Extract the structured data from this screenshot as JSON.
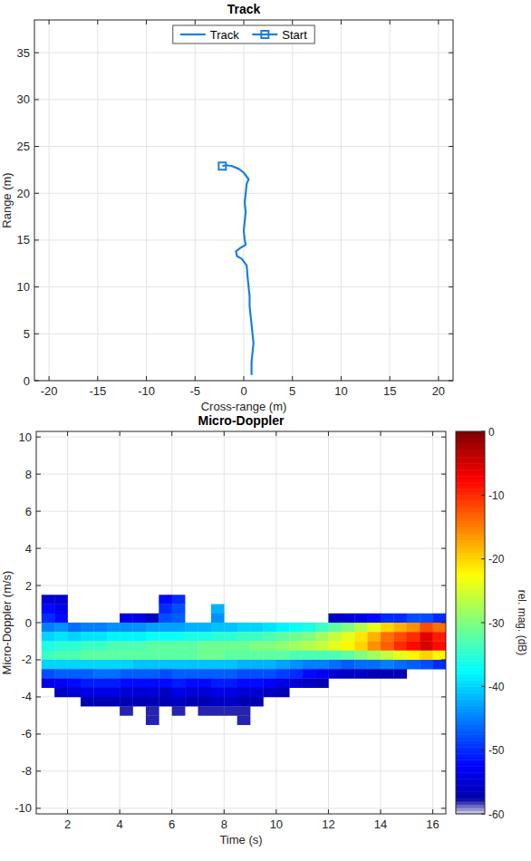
{
  "chart_data": [
    {
      "type": "line",
      "title": "Track",
      "x_label": "Cross-range (m)",
      "y_label": "Range (m)",
      "xlim": [
        -21.5,
        21.5
      ],
      "ylim": [
        0,
        38.5
      ],
      "xticks": [
        -20,
        -15,
        -10,
        -5,
        0,
        5,
        10,
        15,
        20
      ],
      "yticks": [
        0,
        5,
        10,
        15,
        20,
        25,
        30,
        35
      ],
      "grid": true,
      "legend": "top",
      "series": [
        {
          "name": "Track",
          "color": "#1a7fe0",
          "marker": "none",
          "line_style": "solid",
          "x": [
            -2.2,
            -1.8,
            -1.2,
            -0.5,
            0,
            0.5,
            0.3,
            0.2,
            0.1,
            0.2,
            0.1,
            0,
            0.1,
            0.2,
            -0.3,
            -0.8,
            -0.7,
            -0.2,
            0.3,
            0.4,
            0.5,
            0.6,
            0.6,
            0.7,
            0.8,
            0.9,
            1.0,
            0.9,
            0.8,
            0.8
          ],
          "values": [
            22.9,
            23,
            22.9,
            22.6,
            22.2,
            21.5,
            21,
            20,
            19,
            18,
            17,
            16,
            15,
            14.5,
            14.2,
            13.8,
            13.3,
            13,
            12.3,
            11,
            10,
            9,
            8,
            7,
            6,
            5,
            4,
            3,
            2,
            0.6
          ]
        },
        {
          "name": "Start",
          "color": "#1a7fe0",
          "marker": "square",
          "line_style": "solid",
          "x": [
            -2.2
          ],
          "values": [
            22.9
          ]
        }
      ]
    },
    {
      "type": "heatmap",
      "title": "Micro-Doppler",
      "x_label": "Time (s)",
      "y_label": "Micro-Doppler (m/s)",
      "xlim": [
        0.8,
        16.5
      ],
      "ylim": [
        -10.3,
        10.3
      ],
      "xticks": [
        2,
        4,
        6,
        8,
        10,
        12,
        14,
        16
      ],
      "yticks": [
        -10,
        -8,
        -6,
        -4,
        -2,
        0,
        2,
        4,
        6,
        8,
        10
      ],
      "grid": true,
      "x": [
        1.25,
        1.75,
        2.25,
        2.75,
        3.25,
        3.75,
        4.25,
        4.75,
        5.25,
        5.75,
        6.25,
        6.75,
        7.25,
        7.75,
        8.25,
        8.75,
        9.25,
        9.75,
        10.25,
        10.75,
        11.25,
        11.75,
        12.25,
        12.75,
        13.25,
        13.75,
        14.25,
        14.75,
        15.25,
        15.75,
        16.25
      ],
      "y": [
        1.75,
        1.25,
        0.75,
        0.25,
        -0.25,
        -0.75,
        -1.25,
        -1.75,
        -2.25,
        -2.75,
        -3.25,
        -3.75,
        -4.25,
        -4.75,
        -5.25
      ],
      "values": [
        [
          null,
          null,
          null,
          null,
          null,
          null,
          null,
          null,
          null,
          null,
          null,
          null,
          null,
          null,
          null,
          null,
          null,
          null,
          null,
          null,
          null,
          null,
          null,
          null,
          null,
          null,
          null,
          null,
          null,
          null,
          null
        ],
        [
          -55,
          -55,
          null,
          null,
          null,
          null,
          null,
          null,
          null,
          -52,
          -50,
          null,
          null,
          null,
          null,
          null,
          null,
          null,
          null,
          null,
          null,
          null,
          null,
          null,
          null,
          null,
          null,
          null,
          null,
          null,
          null
        ],
        [
          -52,
          -54,
          null,
          null,
          null,
          null,
          null,
          null,
          null,
          -50,
          -48,
          null,
          null,
          -42,
          null,
          null,
          null,
          null,
          null,
          null,
          null,
          null,
          null,
          null,
          null,
          null,
          null,
          null,
          null,
          null,
          null
        ],
        [
          -50,
          -52,
          null,
          null,
          null,
          null,
          -54,
          -54,
          -56,
          -48,
          -47,
          null,
          null,
          -44,
          null,
          null,
          null,
          null,
          null,
          null,
          null,
          null,
          -56,
          -55,
          -54,
          -52,
          -50,
          -50,
          -48,
          -48,
          -50
        ],
        [
          -45,
          -44,
          -46,
          -45,
          -45,
          -44,
          -44,
          -44,
          -43,
          -43,
          -43,
          -42,
          -42,
          -41,
          -41,
          -40,
          -40,
          -39,
          -38,
          -37,
          -36,
          -34,
          -32,
          -30,
          -27,
          -24,
          -20,
          -18,
          -16,
          -12,
          -14
        ],
        [
          -40,
          -39,
          -40,
          -39,
          -39,
          -38,
          -38,
          -38,
          -37,
          -37,
          -37,
          -36,
          -36,
          -35,
          -35,
          -34,
          -34,
          -33,
          -32,
          -31,
          -30,
          -28,
          -26,
          -24,
          -21,
          -18,
          -14,
          -12,
          -10,
          -6,
          -9
        ],
        [
          -36,
          -35,
          -35,
          -34,
          -34,
          -33,
          -33,
          -33,
          -32,
          -32,
          -32,
          -32,
          -31,
          -31,
          -31,
          -31,
          -30,
          -30,
          -29,
          -28,
          -27,
          -26,
          -24,
          -22,
          -20,
          -16,
          -13,
          -10,
          -8,
          -5,
          -8
        ],
        [
          -34,
          -33,
          -33,
          -32,
          -32,
          -32,
          -32,
          -32,
          -32,
          -32,
          -32,
          -32,
          -31,
          -31,
          -32,
          -32,
          -32,
          -32,
          -32,
          -33,
          -33,
          -33,
          -33,
          -32,
          -30,
          -28,
          -26,
          -24,
          -22,
          -20,
          -22
        ],
        [
          -40,
          -40,
          -40,
          -40,
          -40,
          -40,
          -40,
          -41,
          -41,
          -41,
          -41,
          -41,
          -41,
          -41,
          -41,
          -42,
          -42,
          -42,
          -43,
          -44,
          -45,
          -45,
          -46,
          -47,
          -46,
          -46,
          -45,
          -46,
          -47,
          -48,
          -50
        ],
        [
          -48,
          -47,
          -47,
          -47,
          -46,
          -46,
          -47,
          -47,
          -47,
          -48,
          -47,
          -47,
          -47,
          -47,
          -47,
          -48,
          -48,
          -48,
          -49,
          -50,
          -52,
          -53,
          -55,
          -56,
          -56,
          -57,
          -57,
          -57,
          null,
          null,
          null
        ],
        [
          -54,
          -53,
          -52,
          -51,
          -51,
          -51,
          -52,
          -52,
          -52,
          -52,
          -51,
          -52,
          -52,
          -51,
          -51,
          -52,
          -52,
          -53,
          -54,
          -55,
          -56,
          -57,
          null,
          null,
          null,
          null,
          null,
          null,
          null,
          null,
          null
        ],
        [
          null,
          -56,
          -55,
          -54,
          -54,
          -54,
          -55,
          -55,
          -55,
          -56,
          -54,
          -55,
          -55,
          -54,
          -54,
          -55,
          -55,
          -56,
          -57,
          null,
          null,
          null,
          null,
          null,
          null,
          null,
          null,
          null,
          null,
          null,
          null
        ],
        [
          null,
          null,
          null,
          -57,
          -57,
          -57,
          -57,
          -57,
          -57,
          -57,
          -56,
          -57,
          -57,
          -56,
          -56,
          -57,
          -57,
          null,
          null,
          null,
          null,
          null,
          null,
          null,
          null,
          null,
          null,
          null,
          null,
          null,
          null
        ],
        [
          null,
          null,
          null,
          null,
          null,
          null,
          -58,
          null,
          -58,
          null,
          -58,
          null,
          -58,
          -58,
          -58,
          -58,
          null,
          null,
          null,
          null,
          null,
          null,
          null,
          null,
          null,
          null,
          null,
          null,
          null,
          null,
          null
        ],
        [
          null,
          null,
          null,
          null,
          null,
          null,
          null,
          null,
          -58,
          null,
          null,
          null,
          null,
          null,
          null,
          -58,
          null,
          null,
          null,
          null,
          null,
          null,
          null,
          null,
          null,
          null,
          null,
          null,
          null,
          null,
          null
        ]
      ],
      "colorbar": {
        "label": "rel. mag. (dB)",
        "lim": [
          -60,
          0
        ],
        "ticks": [
          -60,
          -50,
          -40,
          -30,
          -20,
          -10,
          0
        ]
      }
    }
  ]
}
